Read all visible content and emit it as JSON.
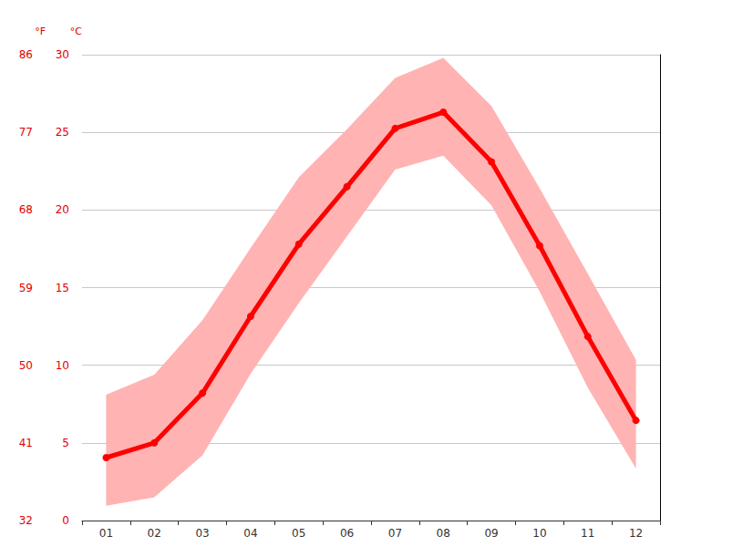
{
  "chart_data": {
    "type": "line",
    "categories": [
      "01",
      "02",
      "03",
      "04",
      "05",
      "06",
      "07",
      "08",
      "09",
      "10",
      "11",
      "12"
    ],
    "values": [
      4.05,
      5.0,
      8.2,
      13.15,
      17.8,
      21.5,
      25.25,
      26.3,
      23.1,
      17.7,
      11.85,
      6.45
    ],
    "color": "#ff0000",
    "marker": "circle",
    "band": {
      "low": [
        0.95,
        1.5,
        4.2,
        9.45,
        14.0,
        18.3,
        22.6,
        23.5,
        20.3,
        14.75,
        8.55,
        3.35
      ],
      "high": [
        8.1,
        9.4,
        12.9,
        17.55,
        22.1,
        25.2,
        28.5,
        29.8,
        26.7,
        21.4,
        15.9,
        10.35
      ],
      "color": "#ffb3b3"
    },
    "ylabel": "°C",
    "ylim": [
      0,
      30
    ],
    "yticks": [
      0,
      5,
      10,
      15,
      20,
      25,
      30
    ],
    "y2label": "°F",
    "y2lim": [
      32,
      86
    ],
    "y2ticks": [
      32,
      41,
      50,
      59,
      68,
      77,
      86
    ],
    "grid": true
  }
}
